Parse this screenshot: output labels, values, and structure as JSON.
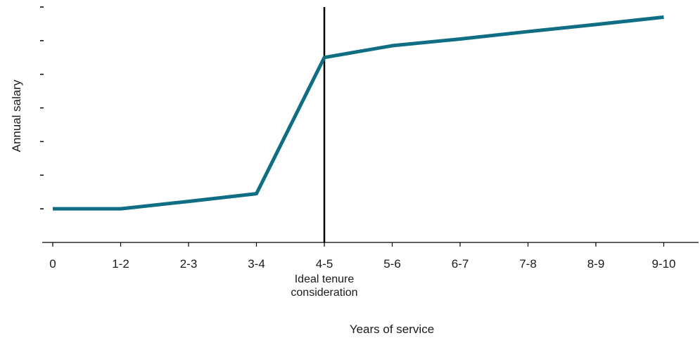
{
  "chart_data": {
    "type": "line",
    "xlabel": "Years of service",
    "ylabel": "Annual salary",
    "categories": [
      "0",
      "1-2",
      "2-3",
      "3-4",
      "4-5",
      "5-6",
      "6-7",
      "7-8",
      "8-9",
      "9-10"
    ],
    "series": [
      {
        "color": "#0f6e84",
        "values": [
          1.0,
          1.0,
          1.22,
          1.45,
          5.5,
          5.85,
          6.05,
          6.27,
          6.48,
          6.7
        ]
      }
    ],
    "ylim": [
      0,
      7.0
    ],
    "y_ticks": [
      0,
      1,
      2,
      3,
      4,
      5,
      6,
      7
    ],
    "y_tick_labels_shown": false,
    "grid": false,
    "annotations": [
      {
        "at_category": "4-5",
        "type": "vertical-line",
        "text_lines": [
          "Ideal tenure",
          "consideration"
        ]
      }
    ]
  }
}
